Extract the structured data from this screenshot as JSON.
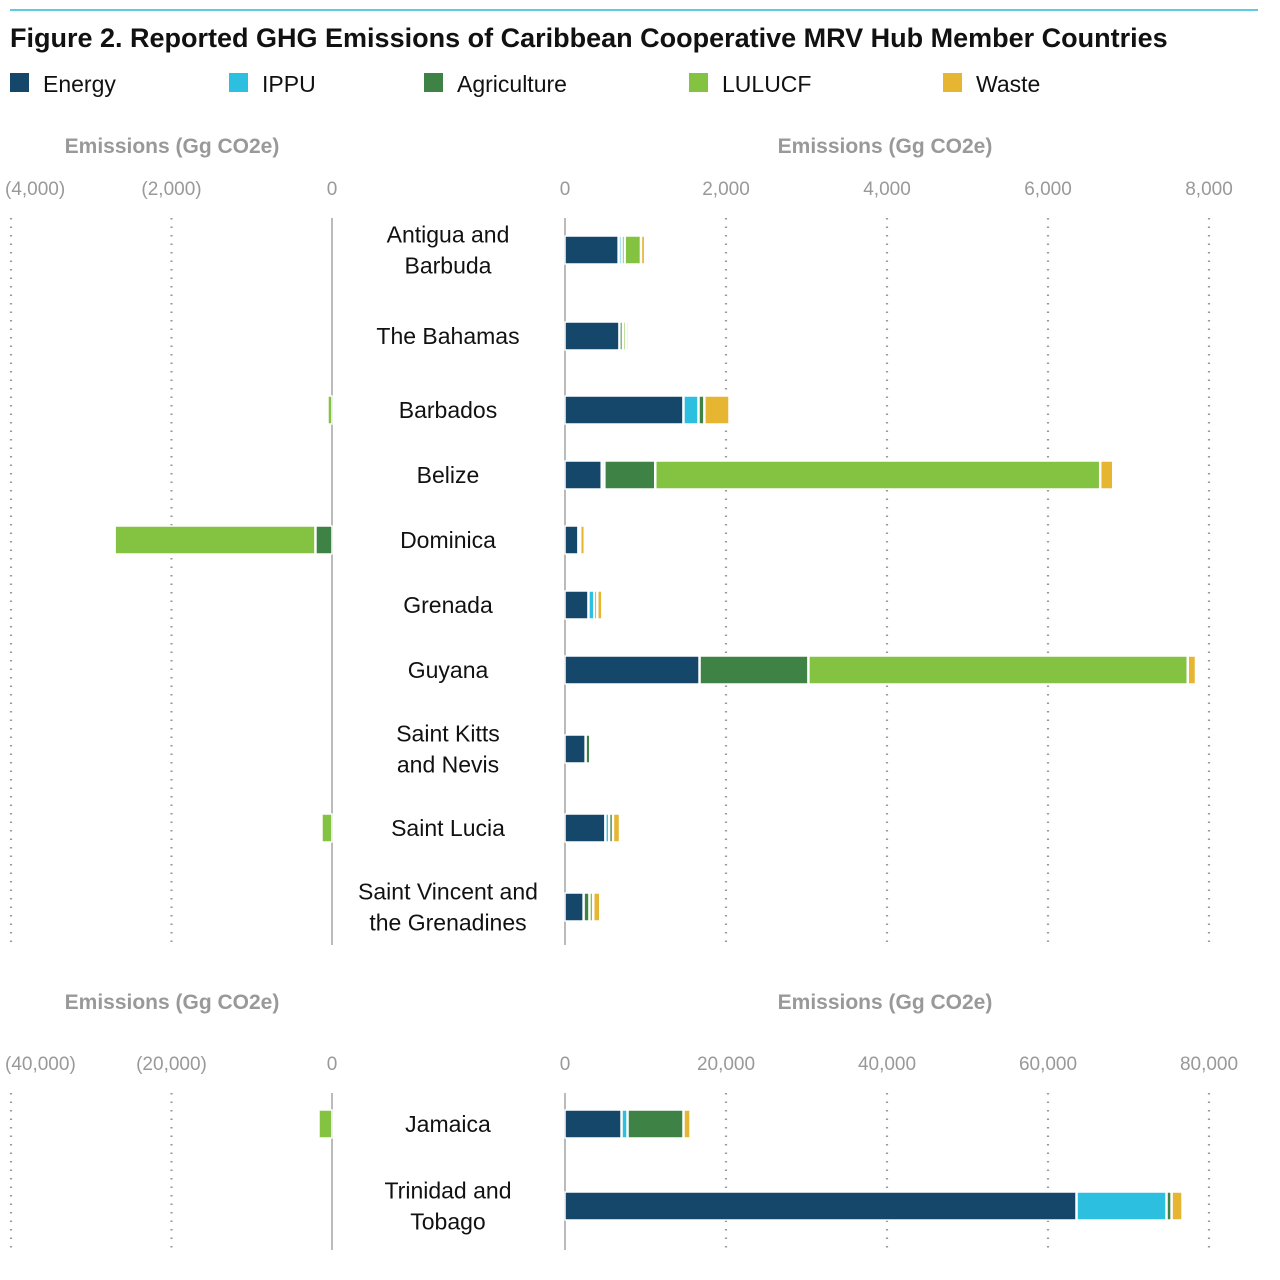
{
  "title": "Figure 2. Reported GHG Emissions of Caribbean Cooperative MRV Hub Member Countries",
  "colors": {
    "Energy": "#15476a",
    "IPPU": "#2dbfe0",
    "Agriculture": "#3f8245",
    "LULUCF": "#84c341",
    "Waste": "#e6b532",
    "rule": "#5fcbe0",
    "axis": "#999999"
  },
  "chart_data": [
    {
      "type": "bar",
      "orientation": "horizontal",
      "stacked": true,
      "legend": "top",
      "xlabel": "Emissions (Gg CO2e)",
      "left_ticks": [
        "(4,000)",
        "(2,000)",
        "0"
      ],
      "left_xlim": [
        -4000,
        0
      ],
      "right_ticks": [
        "0",
        "2,000",
        "4,000",
        "6,000",
        "8,000"
      ],
      "right_xlim": [
        0,
        8000
      ],
      "series_names": [
        "Energy",
        "IPPU",
        "Agriculture",
        "LULUCF",
        "Waste"
      ],
      "categories": [
        [
          "Antigua and",
          "Barbuda"
        ],
        [
          "The Bahamas"
        ],
        [
          "Barbados"
        ],
        [
          "Belize"
        ],
        [
          "Dominica"
        ],
        [
          "Grenada"
        ],
        [
          "Guyana"
        ],
        [
          "Saint Kitts",
          "and Nevis"
        ],
        [
          "Saint Lucia"
        ],
        [
          "Saint Vincent and",
          "the Grenadines"
        ]
      ],
      "positive": [
        [
          660,
          25,
          25,
          190,
          40
        ],
        [
          670,
          0,
          30,
          25,
          20
        ],
        [
          1465,
          175,
          60,
          0,
          300
        ],
        [
          450,
          20,
          620,
          5515,
          150
        ],
        [
          160,
          10,
          0,
          0,
          45
        ],
        [
          285,
          60,
          25,
          0,
          50
        ],
        [
          1665,
          0,
          1340,
          4700,
          90
        ],
        [
          250,
          0,
          45,
          0,
          0
        ],
        [
          495,
          35,
          35,
          0,
          75
        ],
        [
          225,
          0,
          60,
          35,
          75
        ]
      ],
      "negative": [
        [
          0,
          0,
          0,
          0,
          0
        ],
        [
          0,
          0,
          0,
          0,
          0
        ],
        [
          0,
          0,
          0,
          -50,
          0
        ],
        [
          0,
          0,
          0,
          0,
          0
        ],
        [
          0,
          0,
          -200,
          -2490,
          0
        ],
        [
          0,
          0,
          0,
          0,
          0
        ],
        [
          0,
          0,
          0,
          0,
          0
        ],
        [
          0,
          0,
          0,
          0,
          0
        ],
        [
          0,
          0,
          0,
          -125,
          0
        ],
        [
          0,
          0,
          0,
          0,
          0
        ]
      ]
    },
    {
      "type": "bar",
      "orientation": "horizontal",
      "stacked": true,
      "xlabel": "Emissions (Gg CO2e)",
      "left_ticks": [
        "(40,000)",
        "(20,000)",
        "0"
      ],
      "left_xlim": [
        -40000,
        0
      ],
      "right_ticks": [
        "0",
        "20,000",
        "40,000",
        "60,000",
        "80,000"
      ],
      "right_xlim": [
        0,
        80000
      ],
      "series_names": [
        "Energy",
        "IPPU",
        "Agriculture",
        "LULUCF",
        "Waste"
      ],
      "categories": [
        [
          "Jamaica"
        ],
        [
          "Trinidad and",
          "Tobago"
        ]
      ],
      "positive": [
        [
          6960,
          620,
          6830,
          0,
          750
        ],
        [
          63480,
          11060,
          500,
          0,
          1240
        ]
      ],
      "negative": [
        [
          0,
          0,
          0,
          -1620,
          0
        ],
        [
          0,
          0,
          0,
          0,
          0
        ]
      ]
    }
  ]
}
